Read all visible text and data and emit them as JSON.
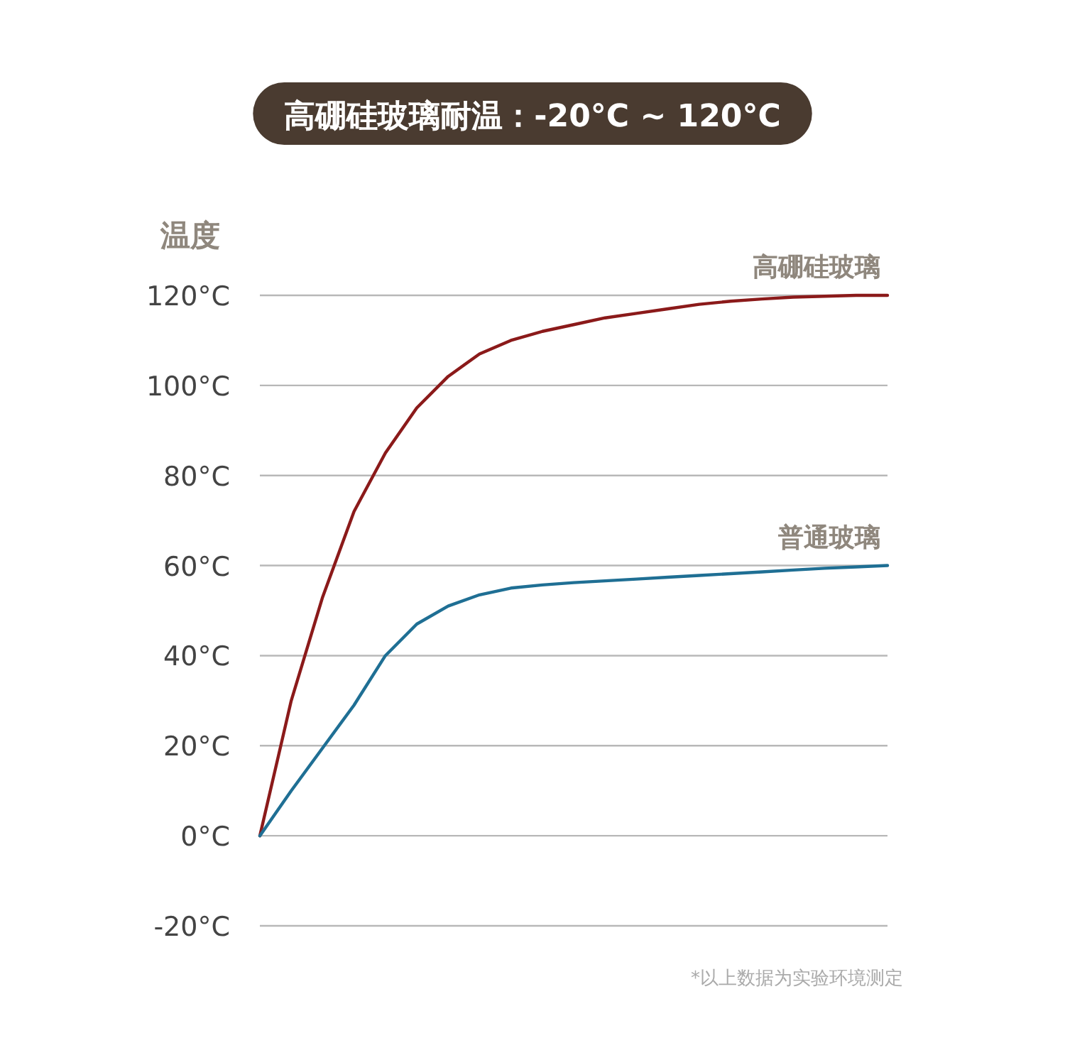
{
  "chart_data": {
    "type": "line",
    "title": "高硼硅玻璃耐温：-20°C ~ 120°C",
    "ylabel": "温度",
    "categories": [
      null,
      null,
      null,
      null,
      null,
      null,
      null,
      null,
      null,
      null,
      null,
      null,
      null,
      null,
      null,
      null,
      null,
      null,
      null,
      null,
      null
    ],
    "series": [
      {
        "name": "高硼硅玻璃",
        "color": "#8b1a1a",
        "values": [
          0,
          30,
          53,
          72,
          85,
          95,
          102,
          107,
          110,
          112,
          113.5,
          115,
          116,
          117,
          118,
          118.7,
          119.2,
          119.6,
          119.8,
          120,
          120
        ]
      },
      {
        "name": "普通玻璃",
        "color": "#1f6f94",
        "values": [
          0,
          10,
          19.5,
          29,
          40,
          47,
          51,
          53.5,
          55,
          55.7,
          56.2,
          56.6,
          57,
          57.4,
          57.8,
          58.2,
          58.6,
          59,
          59.4,
          59.7,
          60
        ]
      }
    ],
    "ylim": [
      -20,
      120
    ],
    "yticks": [
      {
        "value": -20,
        "label": "-20°C"
      },
      {
        "value": 0,
        "label": "0°C"
      },
      {
        "value": 20,
        "label": "20°C"
      },
      {
        "value": 40,
        "label": "40°C"
      },
      {
        "value": 60,
        "label": "60°C"
      },
      {
        "value": 80,
        "label": "80°C"
      },
      {
        "value": 100,
        "label": "100°C"
      },
      {
        "value": 120,
        "label": "120°C"
      }
    ],
    "grid": "y",
    "legend": false,
    "annotations": [
      "*以上数据为实验环境测定"
    ]
  }
}
